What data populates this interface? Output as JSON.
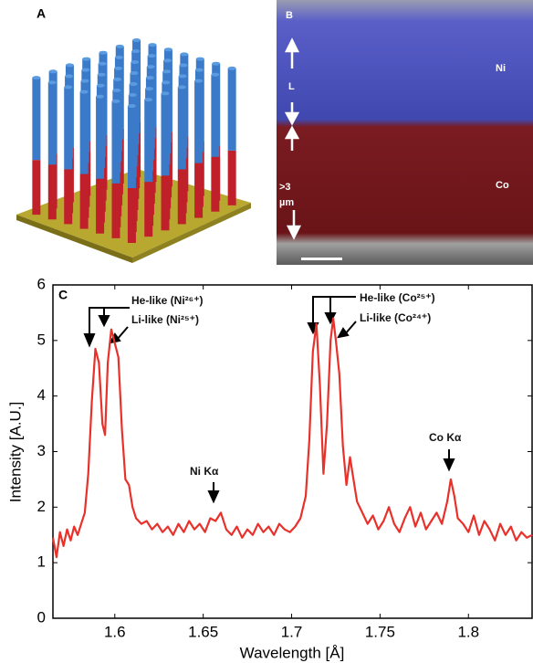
{
  "panel_a": {
    "label": "A"
  },
  "panel_b": {
    "label": "B",
    "texts": [
      "Ni",
      "L",
      ">3",
      "µm",
      "Co"
    ]
  },
  "chart_data": {
    "type": "line",
    "label": "C",
    "xlabel": "Wavelength [Å]",
    "ylabel": "Intensity [A.U.]",
    "annotations": [
      "He-like (Ni²⁶⁺)",
      "Li-like (Ni²⁵⁺)",
      "Ni Kα",
      "He-like (Co²⁵⁺)",
      "Li-like (Co²⁴⁺)",
      "Co Kα"
    ],
    "color": "#e8312a",
    "xlim": [
      1.565,
      1.836
    ],
    "xticks": [
      1.6,
      1.65,
      1.7,
      1.75,
      1.8
    ],
    "ylim": [
      0,
      6
    ],
    "yticks": [
      0,
      1,
      2,
      3,
      4,
      5,
      6
    ],
    "x": [
      1.565,
      1.567,
      1.569,
      1.571,
      1.573,
      1.575,
      1.577,
      1.579,
      1.581,
      1.583,
      1.585,
      1.587,
      1.589,
      1.591,
      1.593,
      1.5945,
      1.596,
      1.598,
      1.6,
      1.602,
      1.604,
      1.606,
      1.608,
      1.61,
      1.612,
      1.615,
      1.618,
      1.621,
      1.624,
      1.627,
      1.63,
      1.633,
      1.636,
      1.639,
      1.642,
      1.645,
      1.648,
      1.651,
      1.654,
      1.657,
      1.66,
      1.663,
      1.666,
      1.669,
      1.672,
      1.675,
      1.678,
      1.681,
      1.684,
      1.687,
      1.69,
      1.693,
      1.696,
      1.699,
      1.702,
      1.705,
      1.708,
      1.71,
      1.712,
      1.714,
      1.716,
      1.718,
      1.72,
      1.722,
      1.7235,
      1.725,
      1.727,
      1.729,
      1.731,
      1.733,
      1.735,
      1.737,
      1.74,
      1.743,
      1.746,
      1.749,
      1.752,
      1.755,
      1.758,
      1.761,
      1.764,
      1.767,
      1.77,
      1.773,
      1.776,
      1.779,
      1.782,
      1.785,
      1.788,
      1.79,
      1.792,
      1.794,
      1.797,
      1.8,
      1.803,
      1.806,
      1.809,
      1.812,
      1.815,
      1.818,
      1.821,
      1.824,
      1.827,
      1.83,
      1.833,
      1.836
    ],
    "values": [
      1.45,
      1.1,
      1.55,
      1.3,
      1.6,
      1.4,
      1.65,
      1.5,
      1.7,
      1.9,
      2.6,
      3.9,
      4.85,
      4.6,
      3.5,
      3.3,
      4.6,
      5.2,
      4.95,
      4.7,
      3.4,
      2.5,
      2.4,
      2.0,
      1.8,
      1.7,
      1.75,
      1.6,
      1.7,
      1.55,
      1.65,
      1.5,
      1.7,
      1.55,
      1.75,
      1.6,
      1.7,
      1.55,
      1.8,
      1.75,
      1.9,
      1.6,
      1.5,
      1.65,
      1.45,
      1.6,
      1.5,
      1.7,
      1.55,
      1.65,
      1.5,
      1.7,
      1.6,
      1.55,
      1.65,
      1.8,
      2.2,
      3.2,
      4.8,
      5.3,
      4.2,
      2.6,
      3.5,
      5.0,
      5.4,
      5.0,
      4.4,
      3.1,
      2.4,
      2.9,
      2.5,
      2.1,
      1.9,
      1.7,
      1.85,
      1.6,
      1.75,
      2.0,
      1.7,
      1.55,
      1.8,
      2.0,
      1.65,
      1.9,
      1.6,
      1.75,
      1.9,
      1.7,
      2.1,
      2.5,
      2.2,
      1.8,
      1.7,
      1.55,
      1.85,
      1.5,
      1.75,
      1.6,
      1.4,
      1.7,
      1.5,
      1.65,
      1.4,
      1.55,
      1.45,
      1.5
    ]
  }
}
